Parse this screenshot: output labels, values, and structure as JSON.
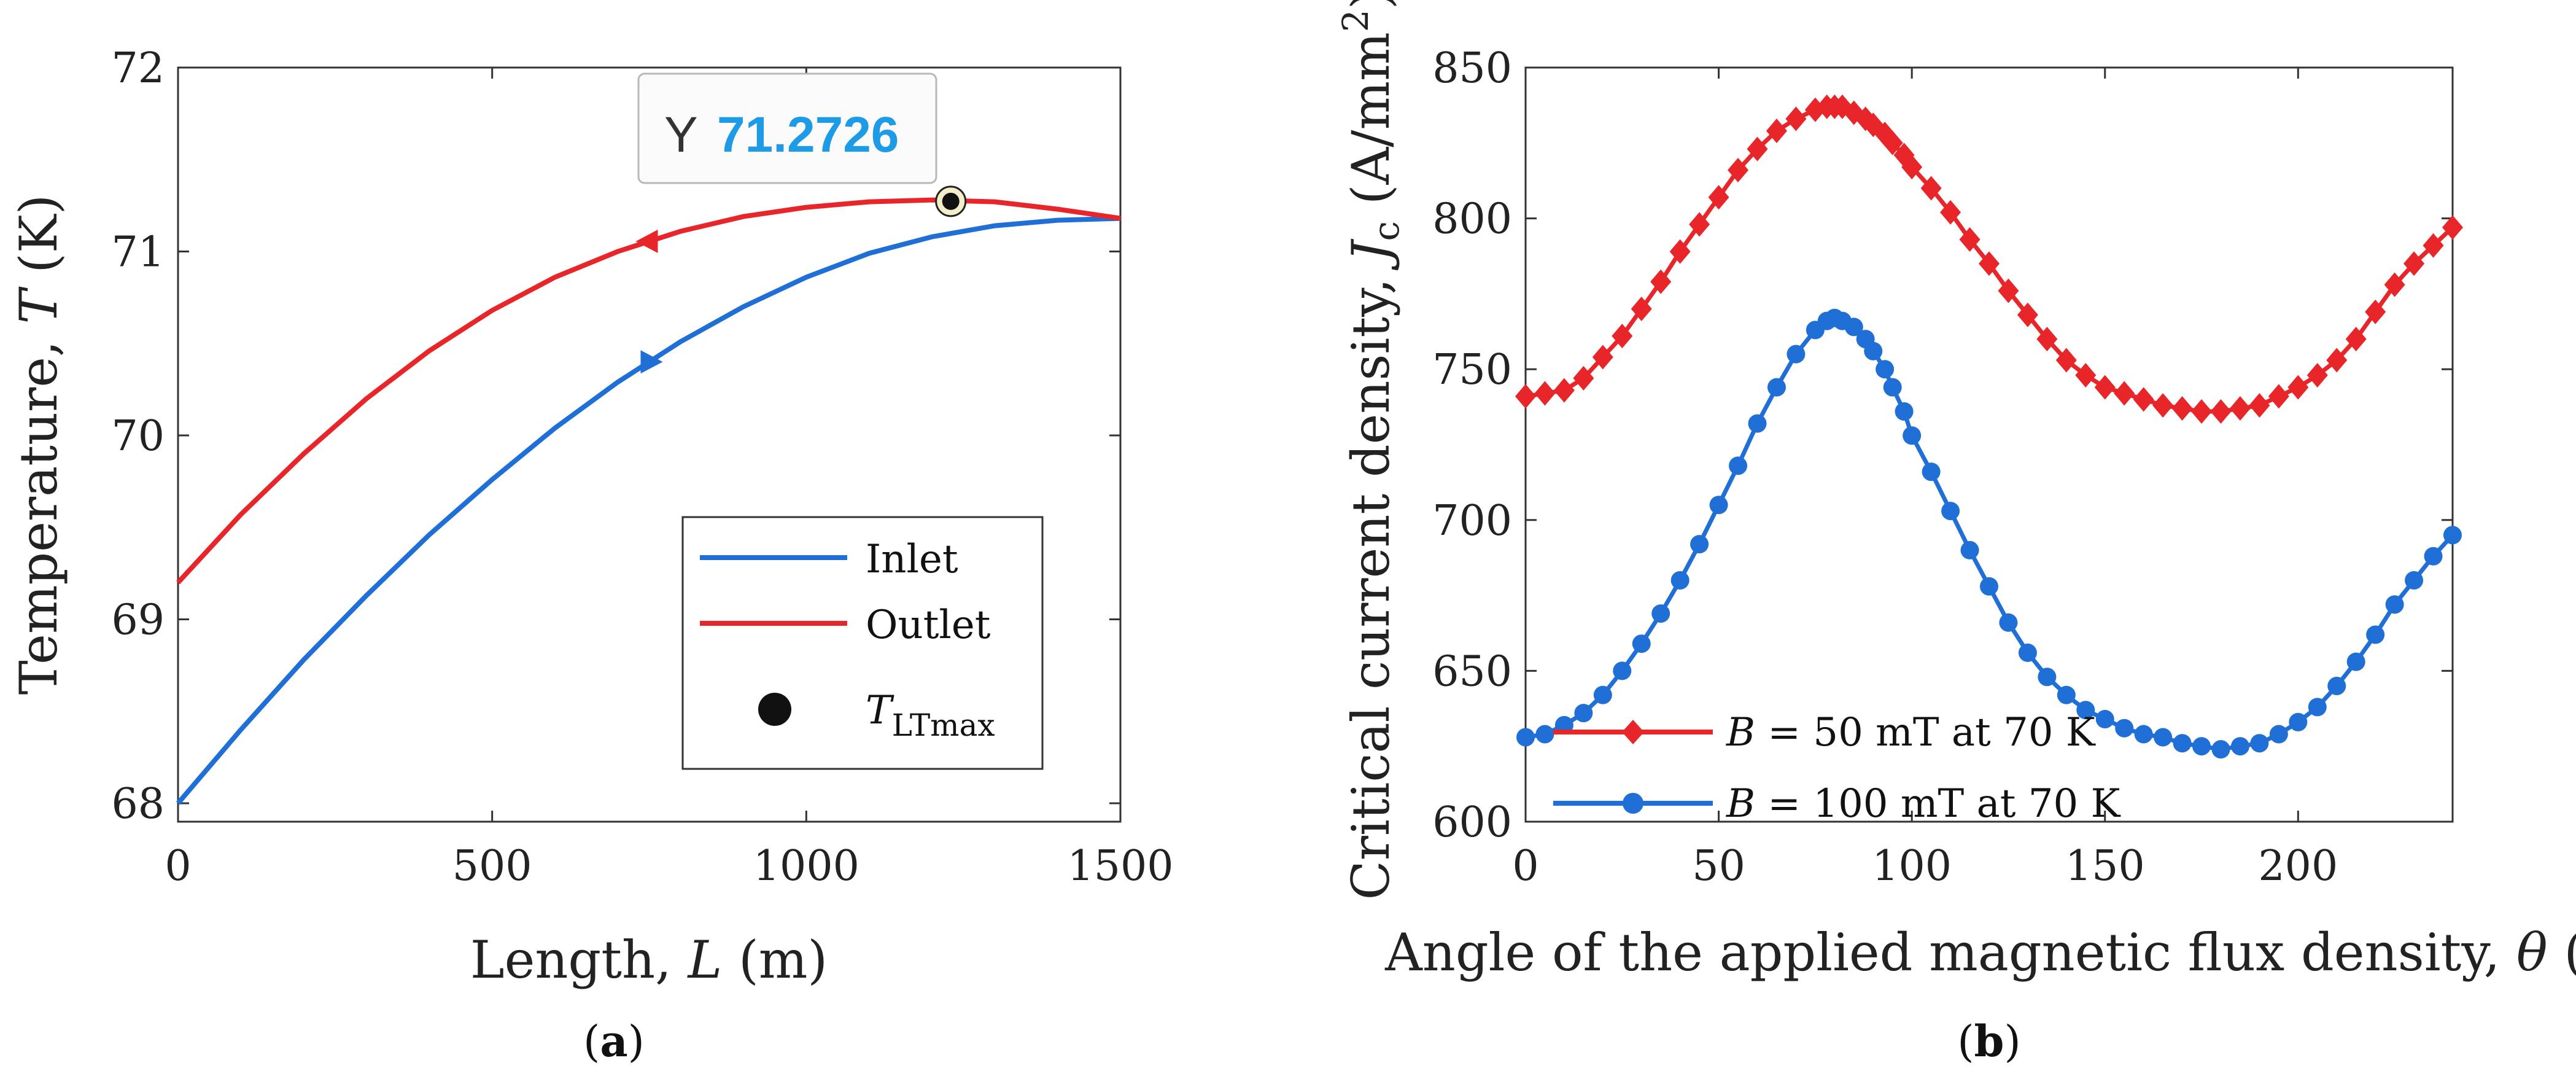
{
  "chart_data": [
    {
      "panel": "a",
      "caption": "(a)",
      "caption_open": "(",
      "caption_letter": "a",
      "caption_close": ")",
      "type": "line",
      "xlabel_prefix": "Length, ",
      "xlabel_var": "L",
      "xlabel_suffix": " (m)",
      "ylabel_prefix": "Temperature, ",
      "ylabel_var": "T",
      "ylabel_suffix": " (K)",
      "xlim": [
        0,
        1500
      ],
      "ylim": [
        67.9,
        72
      ],
      "xticks": [
        0,
        500,
        1000,
        1500
      ],
      "yticks": [
        68,
        69,
        70,
        71,
        72
      ],
      "series": [
        {
          "name": "Inlet",
          "color": "#1f6fd6",
          "arrow": "right",
          "arrow_at": 750,
          "x": [
            0,
            100,
            200,
            300,
            400,
            500,
            600,
            700,
            800,
            900,
            1000,
            1100,
            1200,
            1300,
            1400,
            1500
          ],
          "y": [
            68.0,
            68.4,
            68.78,
            69.13,
            69.46,
            69.76,
            70.04,
            70.29,
            70.51,
            70.7,
            70.86,
            70.99,
            71.08,
            71.14,
            71.17,
            71.18
          ]
        },
        {
          "name": "Outlet",
          "color": "#e8262a",
          "arrow": "left",
          "arrow_at": 750,
          "x": [
            0,
            100,
            200,
            300,
            400,
            500,
            600,
            700,
            800,
            900,
            1000,
            1100,
            1200,
            1300,
            1400,
            1500
          ],
          "y": [
            69.2,
            69.57,
            69.9,
            70.2,
            70.46,
            70.68,
            70.86,
            71.0,
            71.11,
            71.19,
            71.24,
            71.27,
            71.28,
            71.27,
            71.23,
            71.18
          ]
        }
      ],
      "marker": {
        "name_prefix": "T",
        "name_sub": "LTmax",
        "x": 1230,
        "y": 71.2726,
        "color": "#111111"
      },
      "datatip": {
        "label": "Y",
        "value": "71.2726",
        "value_color": "#1e9be6"
      },
      "legend_position": "bottom-right"
    },
    {
      "panel": "b",
      "caption": "(b)",
      "caption_open": "(",
      "caption_letter": "b",
      "caption_close": ")",
      "type": "line",
      "xlabel_prefix": "Angle of the applied magnetic flux density, ",
      "xlabel_var": "θ",
      "xlabel_suffix": " (°)",
      "ylabel_prefix": "Critical current density, ",
      "ylabel_var": "J",
      "ylabel_sub": "c",
      "ylabel_suffix_a": " (A/mm",
      "ylabel_sup": "2",
      "ylabel_suffix_b": ")",
      "xlim": [
        0,
        240
      ],
      "ylim": [
        600,
        850
      ],
      "xticks": [
        0,
        50,
        100,
        150,
        200
      ],
      "yticks": [
        600,
        650,
        700,
        750,
        800,
        850
      ],
      "series": [
        {
          "name_var": "B",
          "name_rest": " = 50 mT at 70 K",
          "color": "#e8262a",
          "marker": "diamond",
          "x": [
            0,
            5,
            10,
            15,
            20,
            25,
            30,
            35,
            40,
            45,
            50,
            55,
            60,
            65,
            70,
            75,
            78,
            80,
            82,
            85,
            88,
            90,
            93,
            95,
            98,
            100,
            105,
            110,
            115,
            120,
            125,
            130,
            135,
            140,
            145,
            150,
            155,
            160,
            165,
            170,
            175,
            180,
            185,
            190,
            195,
            200,
            205,
            210,
            215,
            220,
            225,
            230,
            235,
            240
          ],
          "y": [
            741,
            742,
            743,
            747,
            754,
            761,
            770,
            779,
            789,
            798,
            807,
            816,
            823,
            829,
            833,
            836,
            837,
            837,
            837,
            835,
            833,
            831,
            828,
            825,
            821,
            817,
            810,
            802,
            793,
            785,
            776,
            768,
            760,
            753,
            748,
            744,
            742,
            740,
            738,
            737,
            736,
            736,
            737,
            738,
            741,
            744,
            748,
            753,
            760,
            769,
            778,
            785,
            791,
            797
          ]
        },
        {
          "name_var": "B",
          "name_rest": " = 100 mT at 70 K",
          "color": "#1f6fd6",
          "marker": "circle",
          "x": [
            0,
            5,
            10,
            15,
            20,
            25,
            30,
            35,
            40,
            45,
            50,
            55,
            60,
            65,
            70,
            75,
            78,
            80,
            82,
            85,
            88,
            90,
            93,
            95,
            98,
            100,
            105,
            110,
            115,
            120,
            125,
            130,
            135,
            140,
            145,
            150,
            155,
            160,
            165,
            170,
            175,
            180,
            185,
            190,
            195,
            200,
            205,
            210,
            215,
            220,
            225,
            230,
            235,
            240
          ],
          "y": [
            628,
            629,
            632,
            636,
            642,
            650,
            659,
            669,
            680,
            692,
            705,
            718,
            732,
            744,
            755,
            763,
            766,
            767,
            766,
            764,
            760,
            756,
            750,
            744,
            736,
            728,
            716,
            703,
            690,
            678,
            666,
            656,
            648,
            642,
            637,
            634,
            631,
            629,
            628,
            626,
            625,
            624,
            625,
            626,
            629,
            633,
            638,
            645,
            653,
            662,
            672,
            680,
            688,
            695
          ]
        }
      ],
      "legend_position": "bottom-left"
    }
  ]
}
